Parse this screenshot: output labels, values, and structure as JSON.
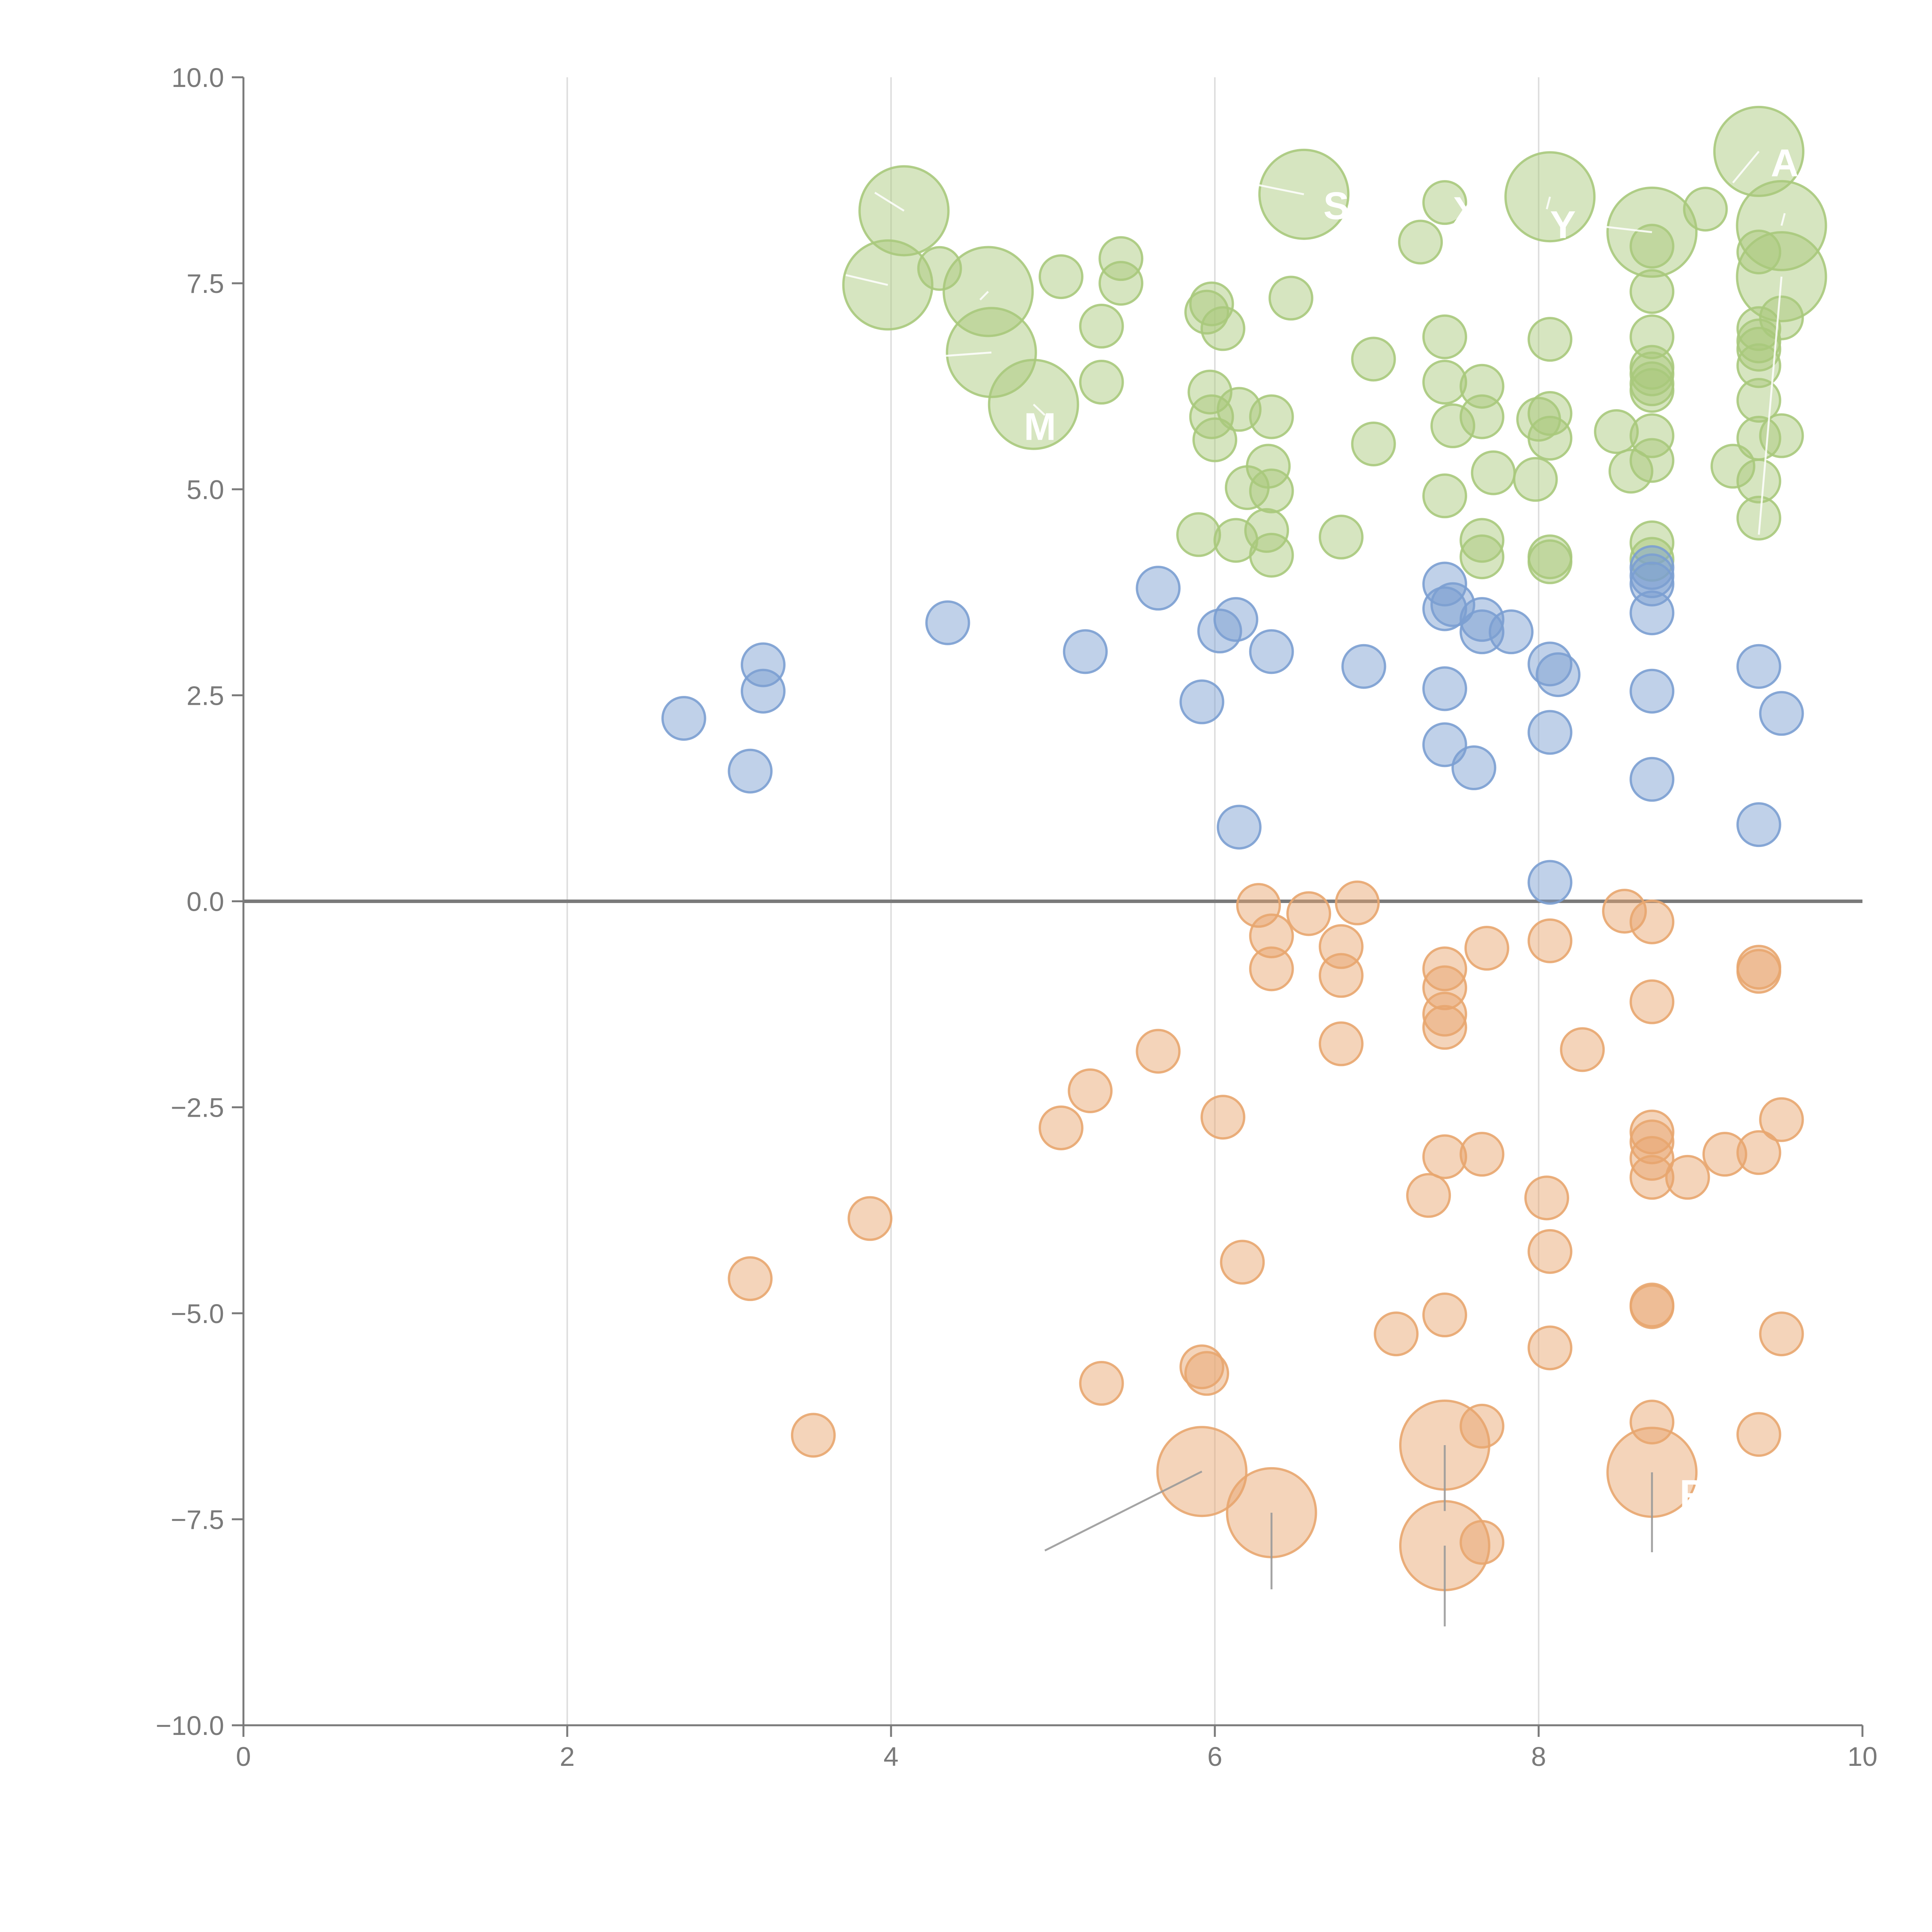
{
  "chart_data": {
    "type": "scatter",
    "title": "",
    "xlabel": "",
    "ylabel": "",
    "xlim": [
      0,
      10
    ],
    "ylim": [
      -10,
      10
    ],
    "x_ticks": [
      "0",
      "2",
      "4",
      "6",
      "8",
      "10"
    ],
    "y_ticks": [
      "10.0",
      "7.5",
      "5.0",
      "2.5",
      "0.0",
      "−2.5",
      "−5.0",
      "−7.5",
      "−10.0"
    ],
    "grid": "vertical gridlines at x ticks",
    "zero_line": true,
    "colors": {
      "green": "#a9c97c",
      "blue": "#7b9fd2",
      "orange": "#e8a66f",
      "axis": "#7a7a7a",
      "grid": "#dedede"
    },
    "series": [
      {
        "color": "green",
        "points": [
          [
            4.08,
            8.38,
            2
          ],
          [
            3.98,
            7.48,
            2
          ],
          [
            4.6,
            7.4,
            2
          ],
          [
            4.62,
            6.66,
            2
          ],
          [
            4.88,
            6.03,
            2
          ],
          [
            6.55,
            8.58,
            2
          ],
          [
            8.07,
            8.55,
            2
          ],
          [
            8.7,
            8.12,
            2
          ],
          [
            9.36,
            9.1,
            2
          ],
          [
            9.5,
            8.2,
            2
          ],
          [
            9.5,
            7.58,
            2
          ],
          [
            4.3,
            7.68,
            1
          ],
          [
            5.05,
            7.58,
            1
          ],
          [
            5.42,
            7.8,
            1
          ],
          [
            5.42,
            7.5,
            1
          ],
          [
            5.3,
            6.98,
            1
          ],
          [
            5.3,
            6.3,
            1
          ],
          [
            5.95,
            7.15,
            1
          ],
          [
            5.98,
            7.25,
            1
          ],
          [
            6.05,
            6.95,
            1
          ],
          [
            6.47,
            7.32,
            1
          ],
          [
            5.97,
            6.18,
            1
          ],
          [
            5.98,
            5.88,
            1
          ],
          [
            6.0,
            5.6,
            1
          ],
          [
            6.15,
            5.97,
            1
          ],
          [
            6.35,
            5.88,
            1
          ],
          [
            6.33,
            5.28,
            1
          ],
          [
            6.2,
            5.02,
            1
          ],
          [
            6.35,
            4.98,
            1
          ],
          [
            5.9,
            4.45,
            1
          ],
          [
            6.13,
            4.38,
            1
          ],
          [
            6.32,
            4.5,
            1
          ],
          [
            6.35,
            4.2,
            1
          ],
          [
            6.78,
            4.42,
            1
          ],
          [
            6.98,
            6.58,
            1
          ],
          [
            6.98,
            5.55,
            1
          ],
          [
            7.27,
            8.0,
            1
          ],
          [
            7.42,
            8.48,
            1
          ],
          [
            7.42,
            6.85,
            1
          ],
          [
            7.42,
            6.3,
            1
          ],
          [
            7.47,
            5.77,
            1
          ],
          [
            7.42,
            4.92,
            1
          ],
          [
            7.65,
            6.25,
            1
          ],
          [
            7.65,
            5.88,
            1
          ],
          [
            7.72,
            5.2,
            1
          ],
          [
            7.65,
            4.38,
            1
          ],
          [
            7.65,
            4.18,
            1
          ],
          [
            8.07,
            6.82,
            1
          ],
          [
            8.07,
            5.92,
            1
          ],
          [
            8.0,
            5.85,
            1
          ],
          [
            8.07,
            5.62,
            1
          ],
          [
            7.98,
            5.12,
            1
          ],
          [
            8.07,
            4.18,
            1
          ],
          [
            8.07,
            4.12,
            1
          ],
          [
            8.48,
            5.7,
            1
          ],
          [
            8.57,
            5.22,
            1
          ],
          [
            8.7,
            7.95,
            1
          ],
          [
            8.7,
            7.4,
            1
          ],
          [
            8.7,
            6.85,
            1
          ],
          [
            8.7,
            6.48,
            1
          ],
          [
            8.7,
            6.4,
            1
          ],
          [
            8.7,
            6.28,
            1
          ],
          [
            8.7,
            6.2,
            1
          ],
          [
            8.7,
            5.65,
            1
          ],
          [
            8.7,
            5.35,
            1
          ],
          [
            8.7,
            4.35,
            1
          ],
          [
            8.7,
            4.15,
            1
          ],
          [
            9.03,
            8.4,
            1
          ],
          [
            9.36,
            7.88,
            1
          ],
          [
            9.36,
            6.95,
            1
          ],
          [
            9.36,
            6.8,
            1
          ],
          [
            9.36,
            6.7,
            1
          ],
          [
            9.36,
            6.5,
            1
          ],
          [
            9.36,
            6.08,
            1
          ],
          [
            9.36,
            5.62,
            1
          ],
          [
            9.36,
            5.1,
            1
          ],
          [
            9.36,
            4.65,
            1
          ],
          [
            9.5,
            7.08,
            1
          ],
          [
            9.5,
            5.65,
            1
          ],
          [
            9.2,
            5.28,
            1
          ]
        ]
      },
      {
        "color": "blue",
        "points": [
          [
            2.72,
            2.22,
            1
          ],
          [
            3.13,
            1.58,
            1
          ],
          [
            3.21,
            2.87,
            1
          ],
          [
            3.21,
            2.55,
            1
          ],
          [
            4.35,
            3.38,
            1
          ],
          [
            5.2,
            3.03,
            1
          ],
          [
            5.65,
            3.8,
            1
          ],
          [
            5.92,
            2.42,
            1
          ],
          [
            6.03,
            3.28,
            1
          ],
          [
            6.13,
            3.42,
            1
          ],
          [
            6.15,
            0.9,
            1
          ],
          [
            6.35,
            3.03,
            1
          ],
          [
            6.92,
            2.85,
            1
          ],
          [
            7.42,
            3.85,
            1
          ],
          [
            7.42,
            3.55,
            1
          ],
          [
            7.47,
            3.6,
            1
          ],
          [
            7.42,
            2.58,
            1
          ],
          [
            7.42,
            1.9,
            1
          ],
          [
            7.6,
            1.62,
            1
          ],
          [
            7.65,
            3.42,
            1
          ],
          [
            7.65,
            3.27,
            1
          ],
          [
            7.83,
            3.27,
            1
          ],
          [
            8.07,
            2.88,
            1
          ],
          [
            8.12,
            2.75,
            1
          ],
          [
            8.07,
            2.05,
            1
          ],
          [
            8.07,
            0.23,
            1
          ],
          [
            8.7,
            4.05,
            1
          ],
          [
            8.7,
            3.95,
            1
          ],
          [
            8.7,
            3.85,
            1
          ],
          [
            8.7,
            3.5,
            1
          ],
          [
            8.7,
            2.55,
            1
          ],
          [
            8.7,
            1.48,
            1
          ],
          [
            9.36,
            2.85,
            1
          ],
          [
            9.36,
            0.93,
            1
          ],
          [
            9.5,
            2.28,
            1
          ]
        ]
      },
      {
        "color": "orange",
        "points": [
          [
            5.92,
            -6.92,
            2
          ],
          [
            6.35,
            -7.42,
            2
          ],
          [
            7.42,
            -6.6,
            2
          ],
          [
            7.42,
            -7.82,
            2
          ],
          [
            8.7,
            -6.93,
            2
          ],
          [
            3.13,
            -4.58,
            1
          ],
          [
            3.52,
            -6.48,
            1
          ],
          [
            3.87,
            -3.85,
            1
          ],
          [
            5.05,
            -2.75,
            1
          ],
          [
            5.23,
            -2.3,
            1
          ],
          [
            5.3,
            -5.85,
            1
          ],
          [
            5.65,
            -1.82,
            1
          ],
          [
            5.92,
            -5.65,
            1
          ],
          [
            5.95,
            -5.73,
            1
          ],
          [
            6.05,
            -2.62,
            1
          ],
          [
            6.17,
            -4.38,
            1
          ],
          [
            6.27,
            -0.05,
            1
          ],
          [
            6.35,
            -0.42,
            1
          ],
          [
            6.35,
            -0.82,
            1
          ],
          [
            6.58,
            -0.15,
            1
          ],
          [
            6.78,
            -0.55,
            1
          ],
          [
            6.78,
            -0.9,
            1
          ],
          [
            6.78,
            -1.73,
            1
          ],
          [
            6.88,
            -0.02,
            1
          ],
          [
            7.12,
            -5.25,
            1
          ],
          [
            7.32,
            -3.57,
            1
          ],
          [
            7.42,
            -0.82,
            1
          ],
          [
            7.42,
            -1.05,
            1
          ],
          [
            7.42,
            -1.37,
            1
          ],
          [
            7.42,
            -1.53,
            1
          ],
          [
            7.42,
            -3.1,
            1
          ],
          [
            7.42,
            -5.02,
            1
          ],
          [
            7.65,
            -3.07,
            1
          ],
          [
            7.65,
            -6.37,
            1
          ],
          [
            7.65,
            -7.78,
            1
          ],
          [
            7.68,
            -0.57,
            1
          ],
          [
            8.07,
            -0.48,
            1
          ],
          [
            8.05,
            -3.6,
            1
          ],
          [
            8.07,
            -4.25,
            1
          ],
          [
            8.07,
            -5.42,
            1
          ],
          [
            8.27,
            -1.8,
            1
          ],
          [
            8.53,
            -0.12,
            1
          ],
          [
            8.7,
            -0.25,
            1
          ],
          [
            8.7,
            -1.22,
            1
          ],
          [
            8.7,
            -2.8,
            1
          ],
          [
            8.7,
            -2.92,
            1
          ],
          [
            8.7,
            -3.12,
            1
          ],
          [
            8.7,
            -3.35,
            1
          ],
          [
            8.7,
            -4.9,
            1
          ],
          [
            8.7,
            -4.92,
            1
          ],
          [
            8.7,
            -6.32,
            1
          ],
          [
            8.92,
            -3.35,
            1
          ],
          [
            9.15,
            -3.07,
            1
          ],
          [
            9.36,
            -0.8,
            1
          ],
          [
            9.36,
            -0.85,
            1
          ],
          [
            9.36,
            -3.05,
            1
          ],
          [
            9.36,
            -6.47,
            1
          ],
          [
            9.5,
            -2.65,
            1
          ],
          [
            9.5,
            -5.25,
            1
          ]
        ]
      }
    ],
    "label_leaders": [
      [
        4.08,
        8.38,
        3.9,
        8.6
      ],
      [
        3.98,
        7.48,
        3.72,
        7.6
      ],
      [
        4.6,
        7.4,
        4.55,
        7.3
      ],
      [
        4.62,
        6.66,
        4.2,
        6.6
      ],
      [
        4.88,
        6.03,
        4.95,
        5.9
      ],
      [
        6.55,
        8.58,
        6.2,
        8.72
      ],
      [
        8.07,
        8.55,
        8.05,
        8.4
      ],
      [
        8.7,
        8.12,
        8.35,
        8.2
      ],
      [
        9.36,
        9.1,
        9.2,
        8.72
      ],
      [
        9.5,
        8.2,
        9.52,
        8.35
      ],
      [
        9.5,
        7.58,
        9.36,
        4.45
      ],
      [
        5.92,
        -6.92,
        4.95,
        -7.88
      ],
      [
        6.35,
        -7.42,
        6.35,
        -8.35
      ],
      [
        7.42,
        -6.6,
        7.42,
        -7.4
      ],
      [
        7.42,
        -7.82,
        7.42,
        -8.8
      ],
      [
        8.7,
        -6.93,
        8.7,
        -7.9
      ]
    ],
    "callouts": [
      {
        "text": "A",
        "x": 9.52,
        "y": 8.8
      },
      {
        "text": "M",
        "x": 4.92,
        "y": 5.6
      },
      {
        "text": "S",
        "x": 6.75,
        "y": 8.28
      },
      {
        "text": "X",
        "x": 7.55,
        "y": 8.22
      },
      {
        "text": "Y",
        "x": 8.15,
        "y": 8.05
      },
      {
        "text": "P",
        "x": 8.95,
        "y": -7.35
      }
    ]
  }
}
